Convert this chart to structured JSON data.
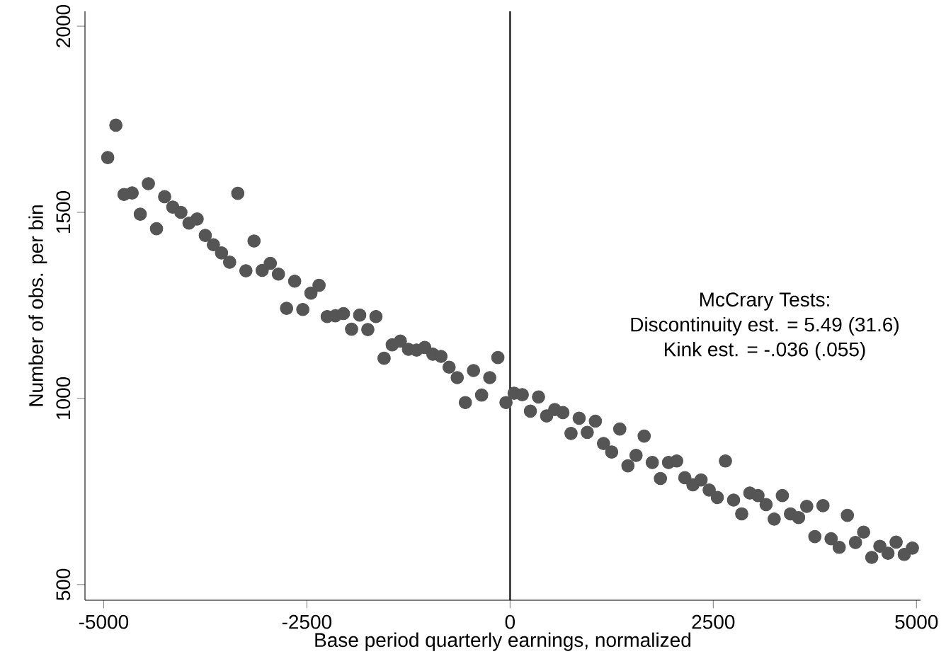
{
  "chart_data": {
    "type": "scatter",
    "xlabel": "Base period quarterly earnings, normalized",
    "ylabel": "Number of obs. per bin",
    "x": [
      -4950,
      -4850,
      -4750,
      -4650,
      -4550,
      -4450,
      -4350,
      -4250,
      -4150,
      -4050,
      -3950,
      -3850,
      -3750,
      -3650,
      -3550,
      -3450,
      -3350,
      -3250,
      -3150,
      -3050,
      -2950,
      -2850,
      -2750,
      -2650,
      -2550,
      -2450,
      -2350,
      -2250,
      -2150,
      -2050,
      -1950,
      -1850,
      -1750,
      -1650,
      -1550,
      -1450,
      -1350,
      -1250,
      -1150,
      -1050,
      -950,
      -850,
      -750,
      -650,
      -550,
      -450,
      -350,
      -250,
      -150,
      -50,
      50,
      150,
      250,
      350,
      450,
      550,
      650,
      750,
      850,
      950,
      1050,
      1150,
      1250,
      1350,
      1450,
      1550,
      1650,
      1750,
      1850,
      1950,
      2050,
      2150,
      2250,
      2350,
      2450,
      2550,
      2650,
      2750,
      2850,
      2950,
      3050,
      3150,
      3250,
      3350,
      3450,
      3550,
      3650,
      3750,
      3850,
      3950,
      4050,
      4150,
      4250,
      4350,
      4450,
      4550,
      4650,
      4750,
      4850,
      4950
    ],
    "series": [
      {
        "color": "#555555",
        "values": [
          1647,
          1734,
          1548,
          1552,
          1495,
          1577,
          1456,
          1542,
          1514,
          1500,
          1471,
          1482,
          1438,
          1413,
          1391,
          1366,
          1551,
          1343,
          1423,
          1344,
          1363,
          1334,
          1242,
          1315,
          1239,
          1283,
          1304,
          1220,
          1222,
          1228,
          1186,
          1224,
          1185,
          1220,
          1108,
          1144,
          1154,
          1132,
          1130,
          1137,
          1119,
          1113,
          1084,
          1056,
          989,
          1075,
          1009,
          1056,
          1110,
          989,
          1014,
          1010,
          966,
          1004,
          953,
          970,
          962,
          906,
          947,
          909,
          939,
          879,
          856,
          918,
          819,
          847,
          899,
          828,
          785,
          828,
          832,
          787,
          768,
          781,
          754,
          734,
          832,
          727,
          690,
          746,
          739,
          715,
          676,
          739,
          690,
          680,
          710,
          629,
          712,
          623,
          600,
          686,
          613,
          641,
          573,
          603,
          584,
          614,
          581,
          598
        ]
      }
    ],
    "xlim": [
      -5230,
      5050
    ],
    "ylim": [
      458,
      2040
    ],
    "xticks": [
      -5000,
      -2500,
      0,
      2500,
      5000
    ],
    "yticks": [
      500,
      1000,
      1500,
      2000
    ],
    "marker": "circle",
    "grid": false,
    "ref_lines": [
      {
        "axis": "x",
        "value": 0,
        "color": "#000000"
      }
    ],
    "annotations": [
      "McCrary Tests:",
      "Discontinuity est. = 5.49 (31.6)",
      "Kink est. = -.036 (.055)"
    ]
  }
}
